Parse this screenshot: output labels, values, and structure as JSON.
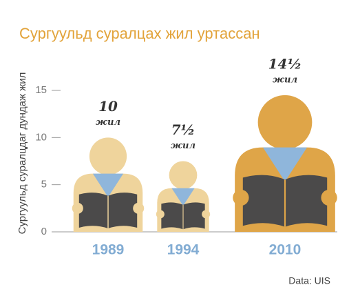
{
  "chart_data": {
    "type": "pictogram",
    "title": "Сургуульд суралцах жил уртассан",
    "y_label": "Сургуульд суралцдаг дундаж жил",
    "categories": [
      "1989",
      "1994",
      "2010"
    ],
    "values": [
      10,
      7.5,
      14.5
    ],
    "value_labels": [
      "10",
      "7½",
      "14½"
    ],
    "unit": "жил",
    "colors": [
      "#efd49c",
      "#efd49c",
      "#dfa548"
    ],
    "collar_color": "#8fb6db",
    "book_color": "#4b4a4a",
    "ylim": [
      0,
      15
    ],
    "yticks": [
      0,
      5,
      10,
      15
    ],
    "source": "Data: UIS"
  }
}
